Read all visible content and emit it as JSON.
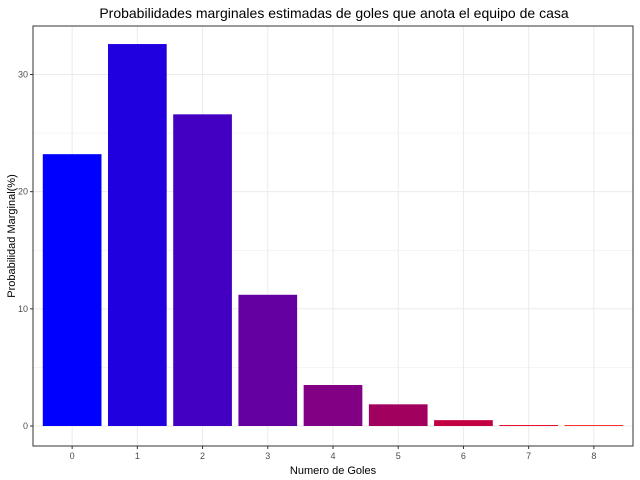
{
  "chart_data": {
    "type": "bar",
    "title": "Probabilidades marginales estimadas de goles que anota el equipo de casa",
    "xlabel": "Numero de Goles",
    "ylabel": "Probabilidad Marginal(%)",
    "categories": [
      "0",
      "1",
      "2",
      "3",
      "4",
      "5",
      "6",
      "7",
      "8"
    ],
    "values": [
      23.2,
      32.6,
      26.6,
      11.2,
      3.5,
      1.85,
      0.5,
      0.08,
      0.04
    ],
    "yticks": [
      0,
      10,
      20,
      30
    ],
    "ylim": [
      0,
      34.6
    ],
    "grid": true,
    "legend": "none",
    "colors": [
      "#0000ff",
      "#2100e0",
      "#4300c3",
      "#6400a1",
      "#820084",
      "#a2005f",
      "#c30041",
      "#e3001f",
      "#ff0000"
    ]
  }
}
